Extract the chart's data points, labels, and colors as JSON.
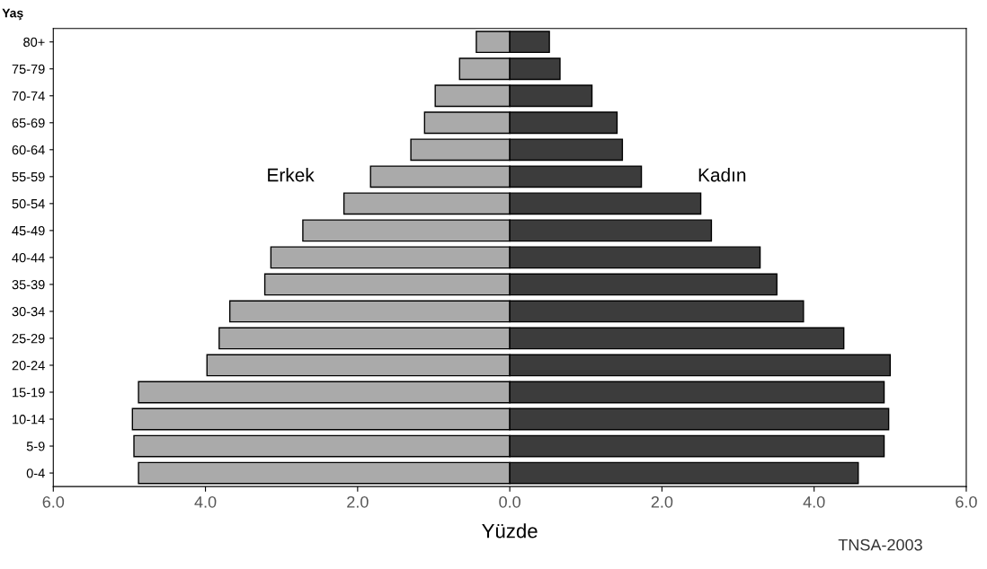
{
  "chart_data": {
    "type": "bar",
    "orientation": "horizontal",
    "ylabel": "Yaş",
    "xlabel": "Yüzde",
    "categories": [
      "80+",
      "75-79",
      "70-74",
      "65-69",
      "60-64",
      "55-59",
      "50-54",
      "45-49",
      "40-44",
      "35-39",
      "30-34",
      "25-29",
      "20-24",
      "15-19",
      "10-14",
      "5-9",
      "0-4"
    ],
    "series": [
      {
        "name": "Erkek",
        "color": "#aaaaaa",
        "values": [
          -0.44,
          -0.66,
          -0.98,
          -1.12,
          -1.3,
          -1.83,
          -2.18,
          -2.72,
          -3.14,
          -3.22,
          -3.68,
          -3.82,
          -3.98,
          -4.88,
          -4.96,
          -4.94,
          -4.88
        ]
      },
      {
        "name": "Kadın",
        "color": "#3c3c3c",
        "values": [
          0.52,
          0.66,
          1.08,
          1.41,
          1.48,
          1.73,
          2.51,
          2.65,
          3.29,
          3.51,
          3.86,
          4.39,
          5.0,
          4.92,
          4.98,
          4.92,
          4.58
        ]
      }
    ],
    "xlim": [
      -6,
      6
    ],
    "xticks": [
      {
        "value": -6,
        "label": "6.0"
      },
      {
        "value": -4,
        "label": "4.0"
      },
      {
        "value": -2,
        "label": "2.0"
      },
      {
        "value": 0,
        "label": "0.0"
      },
      {
        "value": 2,
        "label": "2.0"
      },
      {
        "value": 4,
        "label": "4.0"
      },
      {
        "value": 6,
        "label": "6.0"
      }
    ],
    "annotations": [
      "TNSA-2003"
    ],
    "stacked": true,
    "grid": false,
    "legend": false
  }
}
